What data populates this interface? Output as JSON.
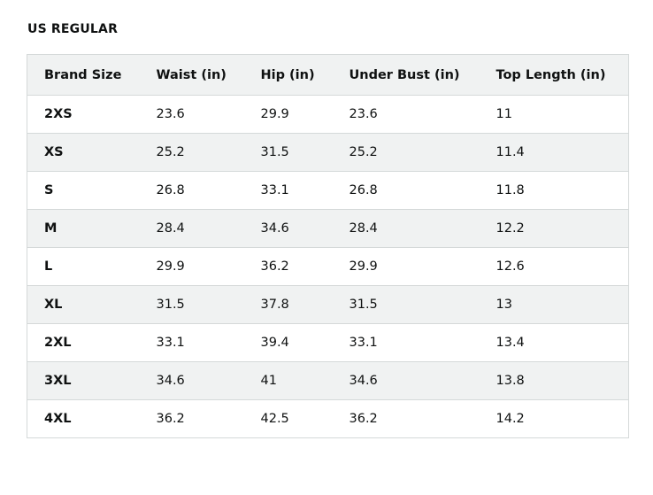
{
  "section": {
    "title": "US REGULAR"
  },
  "table": {
    "headers": [
      "Brand Size",
      "Waist (in)",
      "Hip (in)",
      "Under Bust (in)",
      "Top Length (in)"
    ],
    "rows": [
      [
        "2XS",
        "23.6",
        "29.9",
        "23.6",
        "11"
      ],
      [
        "XS",
        "25.2",
        "31.5",
        "25.2",
        "11.4"
      ],
      [
        "S",
        "26.8",
        "33.1",
        "26.8",
        "11.8"
      ],
      [
        "M",
        "28.4",
        "34.6",
        "28.4",
        "12.2"
      ],
      [
        "L",
        "29.9",
        "36.2",
        "29.9",
        "12.6"
      ],
      [
        "XL",
        "31.5",
        "37.8",
        "31.5",
        "13"
      ],
      [
        "2XL",
        "33.1",
        "39.4",
        "33.1",
        "13.4"
      ],
      [
        "3XL",
        "34.6",
        "41",
        "34.6",
        "13.8"
      ],
      [
        "4XL",
        "36.2",
        "42.5",
        "36.2",
        "14.2"
      ]
    ]
  }
}
